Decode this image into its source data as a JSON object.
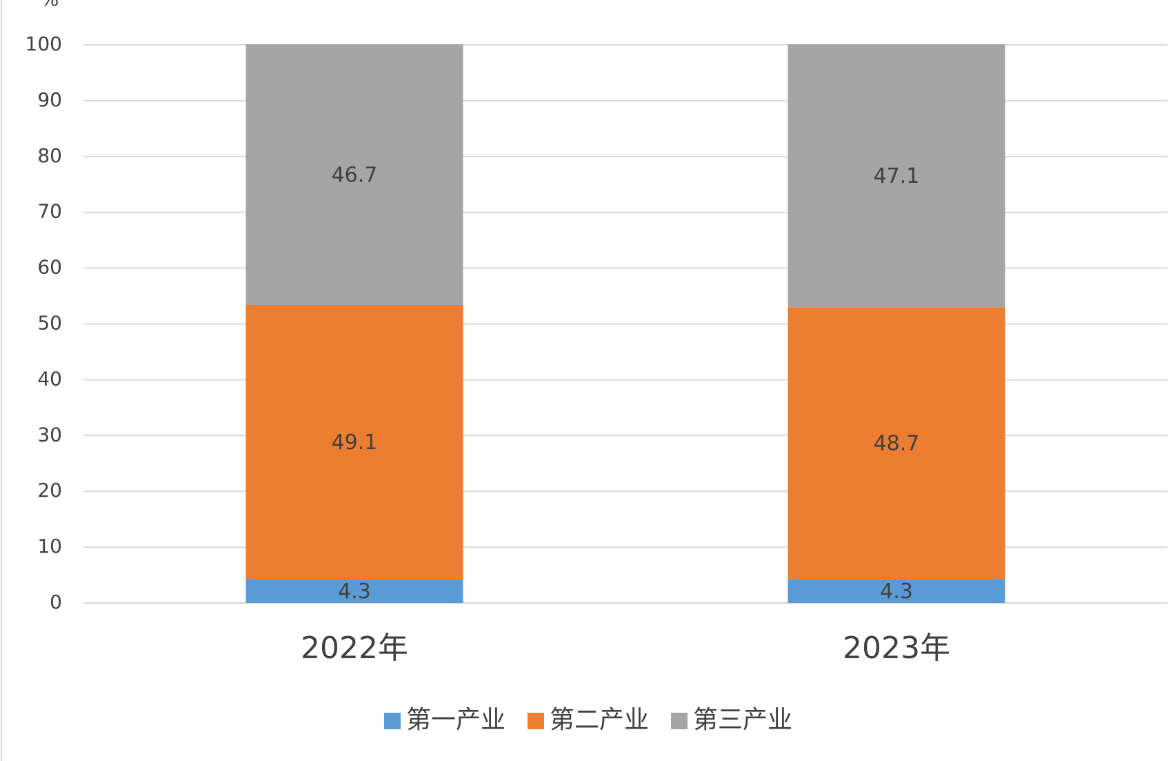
{
  "chart_data": {
    "type": "stacked_bar",
    "y_axis_label": "%",
    "categories": [
      "2022年",
      "2023年"
    ],
    "series": [
      {
        "name": "第一产业",
        "color": "#5b9bd5",
        "values": [
          4.3,
          4.3
        ]
      },
      {
        "name": "第二产业",
        "color": "#ed7d31",
        "values": [
          49.1,
          48.7
        ]
      },
      {
        "name": "第三产业",
        "color": "#a5a5a5",
        "values": [
          46.7,
          47.1
        ]
      }
    ],
    "ylim": [
      0,
      100
    ],
    "yticks": [
      0,
      10,
      20,
      30,
      40,
      50,
      60,
      70,
      80,
      90,
      100
    ],
    "grid": true,
    "legend": "bottom"
  }
}
